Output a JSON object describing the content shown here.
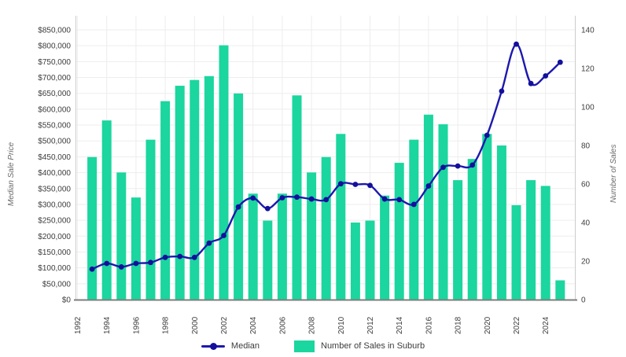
{
  "chart_data": {
    "type": "combo",
    "title": "",
    "legend_position": "bottom",
    "grid": true,
    "x_axis": {
      "start_year": 1992,
      "end_year": 2025,
      "tick_labels": [
        "1992",
        "1994",
        "1996",
        "1998",
        "2000",
        "2002",
        "2004",
        "2006",
        "2008",
        "2010",
        "2012",
        "2014",
        "2016",
        "2018",
        "2020",
        "2022",
        "2024"
      ]
    },
    "y_left_axis": {
      "title": "Median Sale Price",
      "min": 0,
      "max": 850000,
      "step": 50000,
      "tick_labels": [
        "$0",
        "$50,000",
        "$100,000",
        "$150,000",
        "$200,000",
        "$250,000",
        "$300,000",
        "$350,000",
        "$400,000",
        "$450,000",
        "$500,000",
        "$550,000",
        "$600,000",
        "$650,000",
        "$700,000",
        "$750,000",
        "$800,000",
        "$850,000"
      ]
    },
    "y_right_axis": {
      "title": "Number of Sales",
      "min": 0,
      "max": 140,
      "step": 20,
      "tick_labels": [
        "0",
        "20",
        "40",
        "60",
        "80",
        "100",
        "120",
        "140"
      ]
    },
    "years": [
      1993,
      1994,
      1995,
      1996,
      1997,
      1998,
      1999,
      2000,
      2001,
      2002,
      2003,
      2004,
      2005,
      2006,
      2007,
      2008,
      2009,
      2010,
      2011,
      2012,
      2013,
      2014,
      2015,
      2016,
      2017,
      2018,
      2019,
      2020,
      2021,
      2022,
      2023,
      2024,
      2025
    ],
    "series": [
      {
        "name": "Median",
        "type": "line",
        "axis": "left",
        "color": "#1c18ae",
        "point_color": "#13109b",
        "values": [
          96000,
          114000,
          103000,
          114000,
          117000,
          133000,
          136000,
          133000,
          178000,
          202000,
          292000,
          320000,
          287000,
          321000,
          323000,
          317000,
          315000,
          365000,
          363000,
          360000,
          317000,
          315000,
          300000,
          358000,
          417000,
          421000,
          424000,
          518000,
          657000,
          805000,
          681000,
          705000,
          748000
        ]
      },
      {
        "name": "Number of Sales in Suburb",
        "type": "bar",
        "axis": "right",
        "color": "#1bd69e",
        "values": [
          74,
          93,
          66,
          53,
          83,
          103,
          111,
          114,
          116,
          132,
          107,
          55,
          41,
          55,
          106,
          66,
          74,
          86,
          40,
          41,
          54,
          71,
          83,
          96,
          91,
          62,
          73,
          86,
          80,
          49,
          62,
          59,
          10
        ]
      }
    ],
    "colors": {
      "gridline": "#ededed",
      "axis_side": "#cccccc",
      "axis_bottom": "#7d7d7d",
      "tick_text": "#3d3d3d",
      "axis_title_text": "#6b6b6b"
    }
  }
}
